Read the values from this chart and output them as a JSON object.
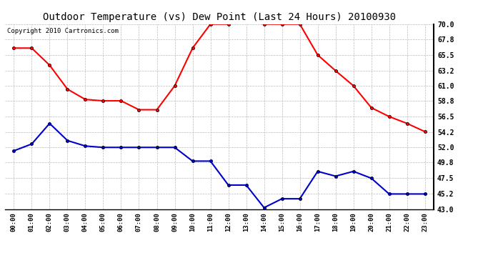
{
  "title": "Outdoor Temperature (vs) Dew Point (Last 24 Hours) 20100930",
  "copyright": "Copyright 2010 Cartronics.com",
  "hours": [
    "00:00",
    "01:00",
    "02:00",
    "03:00",
    "04:00",
    "05:00",
    "06:00",
    "07:00",
    "08:00",
    "09:00",
    "10:00",
    "11:00",
    "12:00",
    "13:00",
    "14:00",
    "15:00",
    "16:00",
    "17:00",
    "18:00",
    "19:00",
    "20:00",
    "21:00",
    "22:00",
    "23:00"
  ],
  "temp": [
    66.5,
    66.5,
    64.0,
    60.5,
    59.0,
    58.8,
    58.8,
    57.5,
    57.5,
    61.0,
    66.5,
    70.0,
    70.0,
    70.5,
    70.0,
    70.0,
    70.0,
    65.5,
    63.2,
    61.0,
    57.8,
    56.5,
    55.5,
    54.3
  ],
  "dew": [
    51.5,
    52.5,
    55.5,
    53.0,
    52.2,
    52.0,
    52.0,
    52.0,
    52.0,
    52.0,
    50.0,
    50.0,
    46.5,
    46.5,
    43.2,
    44.5,
    44.5,
    48.5,
    47.8,
    48.5,
    47.5,
    45.2,
    45.2,
    45.2
  ],
  "temp_color": "#ff0000",
  "dew_color": "#0000cc",
  "bg_color": "#ffffff",
  "grid_color": "#bbbbbb",
  "plot_bg": "#ffffff",
  "ylim_min": 43.0,
  "ylim_max": 70.0,
  "yticks": [
    43.0,
    45.2,
    47.5,
    49.8,
    52.0,
    54.2,
    56.5,
    58.8,
    61.0,
    63.2,
    65.5,
    67.8,
    70.0
  ],
  "title_fontsize": 10,
  "copyright_fontsize": 6.5,
  "marker": "o",
  "marker_size": 3,
  "linewidth": 1.5
}
